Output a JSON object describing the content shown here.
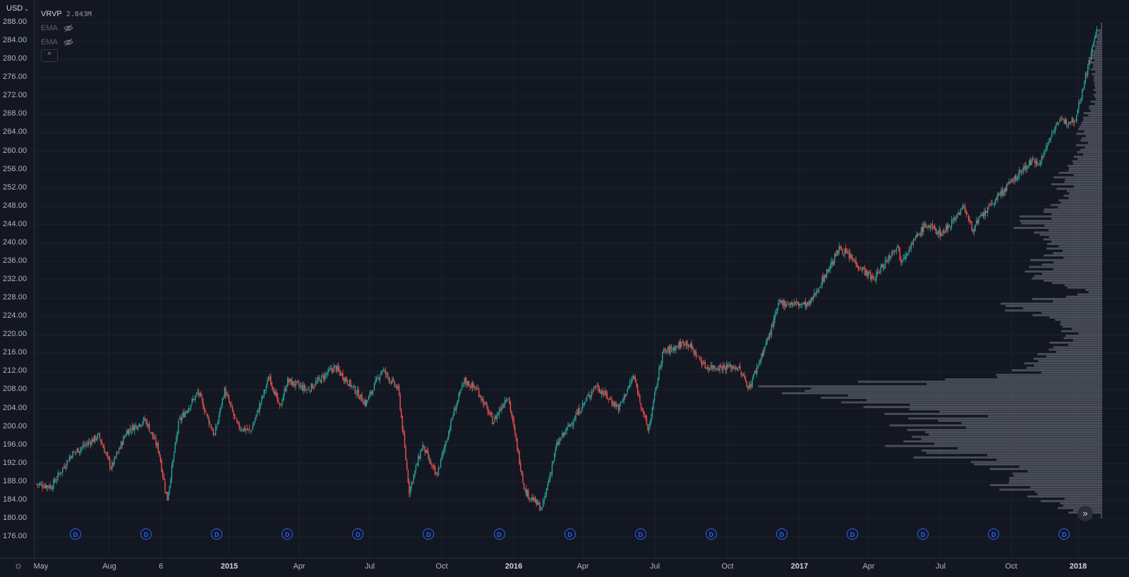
{
  "currency": {
    "label": "USD",
    "caret": "⌄"
  },
  "legend": {
    "vrvp_name": "VRVP",
    "vrvp_value": "2.843M",
    "ema_1": "EMA",
    "ema_2": "EMA",
    "collapse_icon": "chevron-up-icon",
    "eye_icon": "eye-off-icon"
  },
  "scroll_button": {
    "label": "»",
    "icon": "double-chevron-right-icon"
  },
  "colors": {
    "background": "#131722",
    "grid": "#1e222d",
    "up": "#26a69a",
    "down": "#ef5350",
    "volume_profile": "#787b86",
    "dividend": "#2962ff"
  },
  "dividend_marker_label": "D",
  "chart_data": {
    "type": "candlestick",
    "y_ticks": [
      "288.00",
      "284.00",
      "280.00",
      "276.00",
      "272.00",
      "268.00",
      "264.00",
      "260.00",
      "256.00",
      "252.00",
      "248.00",
      "244.00",
      "240.00",
      "236.00",
      "232.00",
      "228.00",
      "224.00",
      "220.00",
      "216.00",
      "212.00",
      "208.00",
      "204.00",
      "200.00",
      "196.00",
      "192.00",
      "188.00",
      "184.00",
      "180.00",
      "176.00"
    ],
    "ylim": [
      176,
      288
    ],
    "x_ticks": [
      {
        "label": "May",
        "major": false
      },
      {
        "label": "Aug",
        "major": false
      },
      {
        "label": "6",
        "major": false
      },
      {
        "label": "2015",
        "major": true
      },
      {
        "label": "Apr",
        "major": false
      },
      {
        "label": "Jul",
        "major": false
      },
      {
        "label": "Oct",
        "major": false
      },
      {
        "label": "2016",
        "major": true
      },
      {
        "label": "Apr",
        "major": false
      },
      {
        "label": "Jul",
        "major": false
      },
      {
        "label": "Oct",
        "major": false
      },
      {
        "label": "2017",
        "major": true
      },
      {
        "label": "Apr",
        "major": false
      },
      {
        "label": "Jul",
        "major": false
      },
      {
        "label": "Oct",
        "major": false
      },
      {
        "label": "2018",
        "major": true
      }
    ],
    "price_path": [
      [
        "2014-05-01",
        187.5
      ],
      [
        "2014-05-20",
        187
      ],
      [
        "2014-06-15",
        194
      ],
      [
        "2014-07-20",
        198
      ],
      [
        "2014-08-05",
        191
      ],
      [
        "2014-08-25",
        199
      ],
      [
        "2014-09-18",
        201.5
      ],
      [
        "2014-10-05",
        195
      ],
      [
        "2014-10-16",
        184
      ],
      [
        "2014-10-31",
        201
      ],
      [
        "2014-11-25",
        207.5
      ],
      [
        "2014-12-16",
        198
      ],
      [
        "2014-12-29",
        208
      ],
      [
        "2015-01-15",
        200
      ],
      [
        "2015-02-01",
        199
      ],
      [
        "2015-02-25",
        211
      ],
      [
        "2015-03-10",
        204
      ],
      [
        "2015-03-20",
        210
      ],
      [
        "2015-04-15",
        208
      ],
      [
        "2015-05-20",
        213
      ],
      [
        "2015-06-10",
        209
      ],
      [
        "2015-06-29",
        205
      ],
      [
        "2015-07-20",
        212.5
      ],
      [
        "2015-08-10",
        208
      ],
      [
        "2015-08-24",
        186
      ],
      [
        "2015-09-10",
        196
      ],
      [
        "2015-09-28",
        189
      ],
      [
        "2015-10-20",
        203
      ],
      [
        "2015-11-03",
        210
      ],
      [
        "2015-11-20",
        208
      ],
      [
        "2015-12-10",
        201
      ],
      [
        "2015-12-29",
        207
      ],
      [
        "2016-01-20",
        186
      ],
      [
        "2016-02-11",
        182
      ],
      [
        "2016-03-01",
        196
      ],
      [
        "2016-04-20",
        209
      ],
      [
        "2016-05-20",
        204
      ],
      [
        "2016-06-08",
        211
      ],
      [
        "2016-06-27",
        199
      ],
      [
        "2016-07-15",
        216
      ],
      [
        "2016-08-15",
        218.5
      ],
      [
        "2016-09-09",
        213
      ],
      [
        "2016-10-20",
        213
      ],
      [
        "2016-11-04",
        208.5
      ],
      [
        "2016-11-30",
        220
      ],
      [
        "2016-12-13",
        227
      ],
      [
        "2017-01-20",
        226.5
      ],
      [
        "2017-03-01",
        239
      ],
      [
        "2017-04-13",
        232
      ],
      [
        "2017-05-15",
        240
      ],
      [
        "2017-05-17",
        236
      ],
      [
        "2017-06-19",
        244
      ],
      [
        "2017-07-10",
        242
      ],
      [
        "2017-08-08",
        248
      ],
      [
        "2017-08-18",
        243
      ],
      [
        "2017-09-20",
        250
      ],
      [
        "2017-10-31",
        257.5
      ],
      [
        "2017-11-15",
        258
      ],
      [
        "2017-12-04",
        266
      ],
      [
        "2017-12-29",
        267
      ],
      [
        "2018-01-26",
        286.5
      ]
    ],
    "volume_profile": [
      [
        181,
        40
      ],
      [
        184,
        70
      ],
      [
        187,
        130
      ],
      [
        190,
        110
      ],
      [
        193,
        190
      ],
      [
        196,
        250
      ],
      [
        199,
        230
      ],
      [
        202,
        210
      ],
      [
        205,
        310
      ],
      [
        208,
        420
      ],
      [
        211,
        110
      ],
      [
        214,
        90
      ],
      [
        217,
        60
      ],
      [
        220,
        40
      ],
      [
        223,
        60
      ],
      [
        226,
        130
      ],
      [
        229,
        15
      ],
      [
        232,
        90
      ],
      [
        235,
        80
      ],
      [
        238,
        60
      ],
      [
        241,
        75
      ],
      [
        244,
        100
      ],
      [
        247,
        70
      ],
      [
        250,
        45
      ],
      [
        253,
        55
      ],
      [
        256,
        45
      ],
      [
        259,
        30
      ],
      [
        262,
        25
      ],
      [
        265,
        30
      ],
      [
        268,
        20
      ],
      [
        271,
        10
      ],
      [
        274,
        10
      ],
      [
        277,
        12
      ],
      [
        280,
        15
      ],
      [
        283,
        8
      ],
      [
        286,
        5
      ]
    ],
    "dividend_dates": [
      "2014-06-20",
      "2014-09-19",
      "2014-12-19",
      "2015-03-20",
      "2015-06-19",
      "2015-09-18",
      "2015-12-18",
      "2016-03-18",
      "2016-06-17",
      "2016-09-16",
      "2016-12-16",
      "2017-03-17",
      "2017-06-16",
      "2017-09-15",
      "2017-12-15"
    ]
  }
}
